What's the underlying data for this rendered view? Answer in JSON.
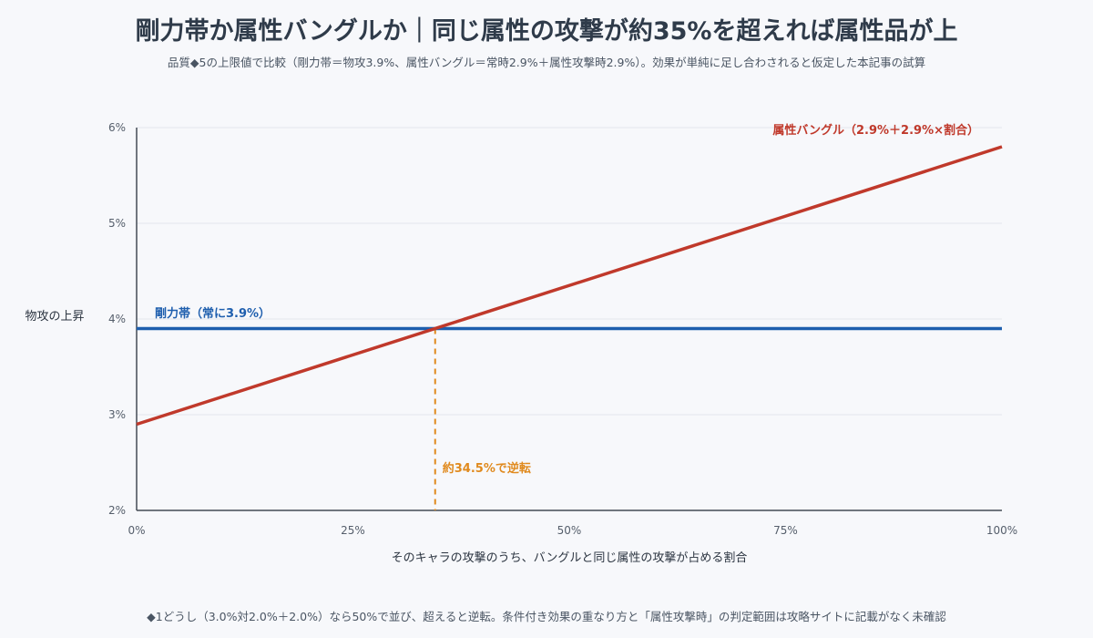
{
  "header": {
    "title": "剛力帯か属性バングルか｜同じ属性の攻撃が約35%を超えれば属性品が上",
    "subtitle": "品質◆5の上限値で比較（剛力帯＝物攻3.9%、属性バングル＝常時2.9%＋属性攻撃時2.9%）。効果が単純に足し合わされると仮定した本記事の試算"
  },
  "footnote": "◆1どうし（3.0%対2.0%＋2.0%）なら50%で並び、超えると逆転。条件付き効果の重なり方と「属性攻撃時」の判定範囲は攻略サイトに記載がなく未確認",
  "colors": {
    "bangle": "#c0392b",
    "belt": "#1f5fae",
    "crossover": "#e08a1e",
    "grid": "#e3e6ec",
    "axis": "#444b55"
  },
  "chart_data": {
    "type": "line",
    "xlabel": "そのキャラの攻撃のうち、バングルと同じ属性の攻撃が占める割合",
    "ylabel": "物攻の上昇",
    "xlim": [
      0,
      100
    ],
    "ylim": [
      2,
      6
    ],
    "x_ticks": [
      0,
      25,
      50,
      75,
      100
    ],
    "x_tick_labels": [
      "0%",
      "25%",
      "50%",
      "75%",
      "100%"
    ],
    "y_ticks": [
      2,
      3,
      4,
      5,
      6
    ],
    "y_tick_labels": [
      "2%",
      "3%",
      "4%",
      "5%",
      "6%"
    ],
    "grid": true,
    "series": [
      {
        "name": "属性バングル（2.9%＋2.9%×割合）",
        "color_key": "bangle",
        "x": [
          0,
          100
        ],
        "y": [
          2.9,
          5.8
        ]
      },
      {
        "name": "剛力帯（常に3.9%）",
        "color_key": "belt",
        "x": [
          0,
          100
        ],
        "y": [
          3.9,
          3.9
        ]
      }
    ],
    "annotations": [
      {
        "text": "約34.5%で逆転",
        "x": 34.5,
        "y": 3.9
      }
    ]
  }
}
